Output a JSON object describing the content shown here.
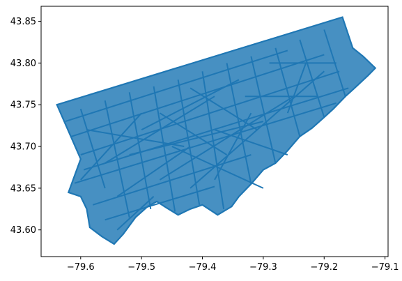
{
  "chart_data": {
    "type": "line",
    "title": "",
    "xlabel": "",
    "ylabel": "",
    "xlim": [
      -79.665,
      -79.095
    ],
    "ylim": [
      43.568,
      43.868
    ],
    "x_ticks": [
      -79.6,
      -79.5,
      -79.4,
      -79.3,
      -79.2,
      -79.1
    ],
    "x_tick_labels": [
      "−79.6",
      "−79.5",
      "−79.4",
      "−79.3",
      "−79.2",
      "−79.1"
    ],
    "y_ticks": [
      43.6,
      43.65,
      43.7,
      43.75,
      43.8,
      43.85
    ],
    "y_tick_labels": [
      "43.60",
      "43.65",
      "43.70",
      "43.75",
      "43.80",
      "43.85"
    ],
    "grid": false,
    "line_color": "#1f77b4",
    "boundary": [
      [
        -79.639,
        43.75
      ],
      [
        -79.17,
        43.855
      ],
      [
        -79.153,
        43.818
      ],
      [
        -79.136,
        43.808
      ],
      [
        -79.116,
        43.794
      ],
      [
        -79.128,
        43.785
      ],
      [
        -79.15,
        43.77
      ],
      [
        -79.165,
        43.76
      ],
      [
        -79.185,
        43.745
      ],
      [
        -79.2,
        43.735
      ],
      [
        -79.22,
        43.722
      ],
      [
        -79.24,
        43.712
      ],
      [
        -79.26,
        43.695
      ],
      [
        -79.28,
        43.68
      ],
      [
        -79.3,
        43.672
      ],
      [
        -79.32,
        43.655
      ],
      [
        -79.34,
        43.64
      ],
      [
        -79.352,
        43.628
      ],
      [
        -79.375,
        43.618
      ],
      [
        -79.4,
        43.63
      ],
      [
        -79.42,
        43.625
      ],
      [
        -79.44,
        43.618
      ],
      [
        -79.46,
        43.627
      ],
      [
        -79.475,
        43.634
      ],
      [
        -79.49,
        43.628
      ],
      [
        -79.51,
        43.615
      ],
      [
        -79.53,
        43.595
      ],
      [
        -79.545,
        43.583
      ],
      [
        -79.565,
        43.592
      ],
      [
        -79.585,
        43.603
      ],
      [
        -79.59,
        43.625
      ],
      [
        -79.6,
        43.64
      ],
      [
        -79.62,
        43.645
      ],
      [
        -79.6,
        43.685
      ],
      [
        -79.639,
        43.75
      ]
    ],
    "streets": [
      [
        [
          -79.61,
          43.656
        ],
        [
          -79.18,
          43.752
        ]
      ],
      [
        [
          -79.595,
          43.672
        ],
        [
          -79.16,
          43.77
        ]
      ],
      [
        [
          -79.6,
          43.69
        ],
        [
          -79.175,
          43.79
        ]
      ],
      [
        [
          -79.615,
          43.712
        ],
        [
          -79.2,
          43.81
        ]
      ],
      [
        [
          -79.625,
          43.73
        ],
        [
          -79.26,
          43.815
        ]
      ],
      [
        [
          -79.58,
          43.63
        ],
        [
          -79.32,
          43.69
        ]
      ],
      [
        [
          -79.56,
          43.612
        ],
        [
          -79.38,
          43.652
        ]
      ],
      [
        [
          -79.54,
          43.6
        ],
        [
          -79.48,
          43.64
        ]
      ],
      [
        [
          -79.6,
          43.745
        ],
        [
          -79.56,
          43.65
        ]
      ],
      [
        [
          -79.56,
          43.755
        ],
        [
          -79.52,
          43.615
        ]
      ],
      [
        [
          -79.52,
          43.765
        ],
        [
          -79.485,
          43.625
        ]
      ],
      [
        [
          -79.48,
          43.772
        ],
        [
          -79.445,
          43.622
        ]
      ],
      [
        [
          -79.44,
          43.78
        ],
        [
          -79.405,
          43.63
        ]
      ],
      [
        [
          -79.4,
          43.79
        ],
        [
          -79.365,
          43.625
        ]
      ],
      [
        [
          -79.36,
          43.8
        ],
        [
          -79.32,
          43.655
        ]
      ],
      [
        [
          -79.32,
          43.808
        ],
        [
          -79.28,
          43.68
        ]
      ],
      [
        [
          -79.28,
          43.818
        ],
        [
          -79.24,
          43.712
        ]
      ],
      [
        [
          -79.24,
          43.828
        ],
        [
          -79.2,
          43.735
        ]
      ],
      [
        [
          -79.2,
          43.84
        ],
        [
          -79.165,
          43.76
        ]
      ],
      [
        [
          -79.59,
          43.72
        ],
        [
          -79.43,
          43.7
        ]
      ],
      [
        [
          -79.52,
          43.69
        ],
        [
          -79.3,
          43.73
        ]
      ],
      [
        [
          -79.47,
          43.66
        ],
        [
          -79.25,
          43.76
        ]
      ],
      [
        [
          -79.42,
          43.65
        ],
        [
          -79.2,
          43.79
        ]
      ],
      [
        [
          -79.56,
          43.68
        ],
        [
          -79.38,
          43.76
        ]
      ],
      [
        [
          -79.5,
          43.72
        ],
        [
          -79.34,
          43.78
        ]
      ],
      [
        [
          -79.45,
          43.7
        ],
        [
          -79.3,
          43.65
        ]
      ],
      [
        [
          -79.38,
          43.72
        ],
        [
          -79.26,
          43.69
        ]
      ],
      [
        [
          -79.33,
          43.76
        ],
        [
          -79.21,
          43.76
        ]
      ],
      [
        [
          -79.29,
          43.8
        ],
        [
          -79.18,
          43.8
        ]
      ],
      [
        [
          -79.54,
          43.64
        ],
        [
          -79.42,
          43.7
        ]
      ],
      [
        [
          -79.6,
          43.66
        ],
        [
          -79.5,
          43.74
        ]
      ],
      [
        [
          -79.47,
          43.74
        ],
        [
          -79.36,
          43.69
        ]
      ],
      [
        [
          -79.42,
          43.77
        ],
        [
          -79.31,
          43.72
        ]
      ],
      [
        [
          -79.38,
          43.66
        ],
        [
          -79.32,
          43.74
        ]
      ],
      [
        [
          -79.26,
          43.74
        ],
        [
          -79.23,
          43.8
        ]
      ]
    ]
  }
}
